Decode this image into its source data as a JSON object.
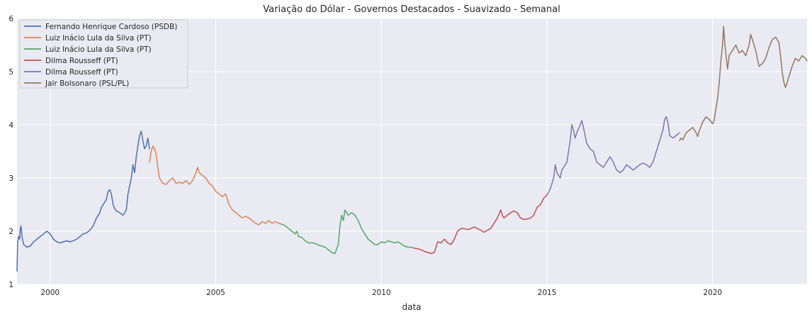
{
  "chart_data": {
    "type": "line",
    "title": "Variação do Dólar - Governos Destacados - Suavizado - Semanal",
    "xlabel": "data",
    "ylabel": "",
    "xlim": [
      1999.0,
      2022.85
    ],
    "ylim": [
      1,
      6
    ],
    "x_ticks": [
      2000,
      2005,
      2010,
      2015,
      2020
    ],
    "y_ticks": [
      1,
      2,
      3,
      4,
      5,
      6
    ],
    "grid": true,
    "legend_position": "top-left",
    "series": [
      {
        "name": "Fernando Henrique Cardoso (PSDB)",
        "color": "#4c72b0",
        "points": [
          [
            1999.0,
            1.25
          ],
          [
            1999.02,
            1.8
          ],
          [
            1999.05,
            1.9
          ],
          [
            1999.08,
            1.85
          ],
          [
            1999.1,
            2.05
          ],
          [
            1999.12,
            2.1
          ],
          [
            1999.15,
            1.9
          ],
          [
            1999.2,
            1.75
          ],
          [
            1999.3,
            1.7
          ],
          [
            1999.4,
            1.72
          ],
          [
            1999.5,
            1.8
          ],
          [
            1999.6,
            1.85
          ],
          [
            1999.7,
            1.9
          ],
          [
            1999.8,
            1.95
          ],
          [
            1999.9,
            2.0
          ],
          [
            2000.0,
            1.95
          ],
          [
            2000.1,
            1.85
          ],
          [
            2000.2,
            1.8
          ],
          [
            2000.3,
            1.78
          ],
          [
            2000.4,
            1.8
          ],
          [
            2000.5,
            1.82
          ],
          [
            2000.6,
            1.8
          ],
          [
            2000.7,
            1.82
          ],
          [
            2000.8,
            1.85
          ],
          [
            2000.9,
            1.9
          ],
          [
            2001.0,
            1.95
          ],
          [
            2001.1,
            1.97
          ],
          [
            2001.2,
            2.02
          ],
          [
            2001.3,
            2.1
          ],
          [
            2001.4,
            2.25
          ],
          [
            2001.5,
            2.35
          ],
          [
            2001.55,
            2.45
          ],
          [
            2001.6,
            2.5
          ],
          [
            2001.7,
            2.6
          ],
          [
            2001.75,
            2.75
          ],
          [
            2001.8,
            2.78
          ],
          [
            2001.85,
            2.7
          ],
          [
            2001.9,
            2.5
          ],
          [
            2001.95,
            2.42
          ],
          [
            2002.0,
            2.38
          ],
          [
            2002.1,
            2.35
          ],
          [
            2002.2,
            2.3
          ],
          [
            2002.3,
            2.4
          ],
          [
            2002.35,
            2.7
          ],
          [
            2002.4,
            2.85
          ],
          [
            2002.45,
            3.0
          ],
          [
            2002.5,
            3.25
          ],
          [
            2002.55,
            3.1
          ],
          [
            2002.6,
            3.4
          ],
          [
            2002.65,
            3.6
          ],
          [
            2002.7,
            3.8
          ],
          [
            2002.75,
            3.88
          ],
          [
            2002.8,
            3.7
          ],
          [
            2002.85,
            3.55
          ],
          [
            2002.9,
            3.6
          ],
          [
            2002.95,
            3.75
          ],
          [
            2003.0,
            3.55
          ]
        ]
      },
      {
        "name": "Luiz Inácio Lula da Silva (PT)",
        "color": "#dd8452",
        "points": [
          [
            2003.0,
            3.3
          ],
          [
            2003.05,
            3.5
          ],
          [
            2003.1,
            3.6
          ],
          [
            2003.15,
            3.55
          ],
          [
            2003.2,
            3.45
          ],
          [
            2003.25,
            3.2
          ],
          [
            2003.3,
            3.0
          ],
          [
            2003.35,
            2.95
          ],
          [
            2003.4,
            2.9
          ],
          [
            2003.5,
            2.88
          ],
          [
            2003.6,
            2.95
          ],
          [
            2003.7,
            3.0
          ],
          [
            2003.8,
            2.9
          ],
          [
            2003.9,
            2.92
          ],
          [
            2004.0,
            2.9
          ],
          [
            2004.1,
            2.95
          ],
          [
            2004.2,
            2.88
          ],
          [
            2004.3,
            2.95
          ],
          [
            2004.4,
            3.1
          ],
          [
            2004.45,
            3.2
          ],
          [
            2004.5,
            3.1
          ],
          [
            2004.6,
            3.05
          ],
          [
            2004.7,
            3.0
          ],
          [
            2004.8,
            2.9
          ],
          [
            2004.9,
            2.85
          ],
          [
            2005.0,
            2.75
          ],
          [
            2005.1,
            2.7
          ],
          [
            2005.2,
            2.65
          ],
          [
            2005.3,
            2.7
          ],
          [
            2005.4,
            2.5
          ],
          [
            2005.5,
            2.4
          ],
          [
            2005.6,
            2.35
          ],
          [
            2005.7,
            2.3
          ],
          [
            2005.8,
            2.25
          ],
          [
            2005.9,
            2.28
          ],
          [
            2006.0,
            2.25
          ],
          [
            2006.1,
            2.2
          ],
          [
            2006.2,
            2.15
          ],
          [
            2006.3,
            2.12
          ],
          [
            2006.4,
            2.18
          ],
          [
            2006.5,
            2.15
          ],
          [
            2006.6,
            2.2
          ],
          [
            2006.7,
            2.15
          ],
          [
            2006.8,
            2.18
          ],
          [
            2006.9,
            2.15
          ],
          [
            2007.0,
            2.13
          ]
        ]
      },
      {
        "name": "Luiz Inácio Lula da Silva (PT)",
        "color": "#55a868",
        "points": [
          [
            2007.0,
            2.13
          ],
          [
            2007.1,
            2.1
          ],
          [
            2007.2,
            2.05
          ],
          [
            2007.3,
            2.0
          ],
          [
            2007.4,
            1.95
          ],
          [
            2007.45,
            2.0
          ],
          [
            2007.5,
            1.9
          ],
          [
            2007.6,
            1.88
          ],
          [
            2007.7,
            1.82
          ],
          [
            2007.8,
            1.78
          ],
          [
            2007.9,
            1.78
          ],
          [
            2008.0,
            1.77
          ],
          [
            2008.1,
            1.74
          ],
          [
            2008.2,
            1.72
          ],
          [
            2008.3,
            1.7
          ],
          [
            2008.4,
            1.65
          ],
          [
            2008.5,
            1.6
          ],
          [
            2008.6,
            1.58
          ],
          [
            2008.7,
            1.75
          ],
          [
            2008.75,
            2.1
          ],
          [
            2008.8,
            2.3
          ],
          [
            2008.85,
            2.2
          ],
          [
            2008.9,
            2.4
          ],
          [
            2008.95,
            2.35
          ],
          [
            2009.0,
            2.3
          ],
          [
            2009.1,
            2.35
          ],
          [
            2009.2,
            2.3
          ],
          [
            2009.3,
            2.2
          ],
          [
            2009.4,
            2.05
          ],
          [
            2009.5,
            1.95
          ],
          [
            2009.6,
            1.85
          ],
          [
            2009.7,
            1.8
          ],
          [
            2009.8,
            1.75
          ],
          [
            2009.9,
            1.75
          ],
          [
            2010.0,
            1.8
          ],
          [
            2010.1,
            1.78
          ],
          [
            2010.2,
            1.82
          ],
          [
            2010.3,
            1.8
          ],
          [
            2010.4,
            1.78
          ],
          [
            2010.5,
            1.8
          ],
          [
            2010.6,
            1.76
          ],
          [
            2010.7,
            1.72
          ],
          [
            2010.8,
            1.7
          ],
          [
            2010.9,
            1.7
          ],
          [
            2011.0,
            1.68
          ]
        ]
      },
      {
        "name": "Dilma Rousseff (PT)",
        "color": "#c44e52",
        "points": [
          [
            2011.0,
            1.68
          ],
          [
            2011.1,
            1.67
          ],
          [
            2011.2,
            1.65
          ],
          [
            2011.3,
            1.62
          ],
          [
            2011.4,
            1.6
          ],
          [
            2011.5,
            1.58
          ],
          [
            2011.6,
            1.6
          ],
          [
            2011.7,
            1.8
          ],
          [
            2011.8,
            1.78
          ],
          [
            2011.9,
            1.85
          ],
          [
            2012.0,
            1.78
          ],
          [
            2012.1,
            1.75
          ],
          [
            2012.2,
            1.85
          ],
          [
            2012.3,
            2.0
          ],
          [
            2012.4,
            2.05
          ],
          [
            2012.5,
            2.05
          ],
          [
            2012.6,
            2.03
          ],
          [
            2012.7,
            2.05
          ],
          [
            2012.8,
            2.08
          ],
          [
            2012.9,
            2.05
          ],
          [
            2013.0,
            2.02
          ],
          [
            2013.1,
            1.98
          ],
          [
            2013.2,
            2.02
          ],
          [
            2013.3,
            2.05
          ],
          [
            2013.4,
            2.15
          ],
          [
            2013.5,
            2.25
          ],
          [
            2013.6,
            2.4
          ],
          [
            2013.65,
            2.3
          ],
          [
            2013.7,
            2.25
          ],
          [
            2013.8,
            2.3
          ],
          [
            2013.9,
            2.35
          ],
          [
            2014.0,
            2.38
          ],
          [
            2014.1,
            2.35
          ],
          [
            2014.2,
            2.25
          ],
          [
            2014.3,
            2.22
          ],
          [
            2014.4,
            2.23
          ],
          [
            2014.5,
            2.25
          ],
          [
            2014.6,
            2.3
          ],
          [
            2014.7,
            2.45
          ],
          [
            2014.8,
            2.5
          ],
          [
            2014.9,
            2.62
          ],
          [
            2015.0,
            2.68
          ]
        ]
      },
      {
        "name": "Dilma Rousseff (PT)",
        "color": "#8172b3",
        "points": [
          [
            2015.0,
            2.68
          ],
          [
            2015.1,
            2.8
          ],
          [
            2015.2,
            3.0
          ],
          [
            2015.25,
            3.25
          ],
          [
            2015.3,
            3.1
          ],
          [
            2015.4,
            3.0
          ],
          [
            2015.45,
            3.15
          ],
          [
            2015.5,
            3.2
          ],
          [
            2015.6,
            3.3
          ],
          [
            2015.65,
            3.5
          ],
          [
            2015.7,
            3.7
          ],
          [
            2015.75,
            4.0
          ],
          [
            2015.8,
            3.9
          ],
          [
            2015.85,
            3.75
          ],
          [
            2015.9,
            3.85
          ],
          [
            2016.0,
            4.0
          ],
          [
            2016.05,
            4.08
          ],
          [
            2016.1,
            3.95
          ],
          [
            2016.15,
            3.8
          ],
          [
            2016.2,
            3.65
          ],
          [
            2016.3,
            3.55
          ],
          [
            2016.4,
            3.5
          ],
          [
            2016.5,
            3.3
          ],
          [
            2016.6,
            3.25
          ],
          [
            2016.7,
            3.2
          ],
          [
            2016.8,
            3.3
          ],
          [
            2016.9,
            3.4
          ],
          [
            2017.0,
            3.3
          ],
          [
            2017.1,
            3.15
          ],
          [
            2017.2,
            3.1
          ],
          [
            2017.3,
            3.15
          ],
          [
            2017.4,
            3.25
          ],
          [
            2017.5,
            3.2
          ],
          [
            2017.6,
            3.15
          ],
          [
            2017.7,
            3.2
          ],
          [
            2017.8,
            3.25
          ],
          [
            2017.9,
            3.28
          ],
          [
            2018.0,
            3.25
          ],
          [
            2018.1,
            3.2
          ],
          [
            2018.2,
            3.3
          ],
          [
            2018.3,
            3.5
          ],
          [
            2018.4,
            3.7
          ],
          [
            2018.5,
            3.9
          ],
          [
            2018.55,
            4.1
          ],
          [
            2018.6,
            4.15
          ],
          [
            2018.65,
            4.05
          ],
          [
            2018.7,
            3.8
          ],
          [
            2018.8,
            3.75
          ],
          [
            2018.9,
            3.8
          ],
          [
            2019.0,
            3.85
          ]
        ]
      },
      {
        "name": "Jair Bolsonaro (PSL/PL)",
        "color": "#937860",
        "points": [
          [
            2019.0,
            3.7
          ],
          [
            2019.05,
            3.75
          ],
          [
            2019.1,
            3.72
          ],
          [
            2019.2,
            3.85
          ],
          [
            2019.3,
            3.9
          ],
          [
            2019.4,
            3.95
          ],
          [
            2019.5,
            3.85
          ],
          [
            2019.55,
            3.78
          ],
          [
            2019.6,
            3.9
          ],
          [
            2019.7,
            4.05
          ],
          [
            2019.8,
            4.15
          ],
          [
            2019.9,
            4.1
          ],
          [
            2020.0,
            4.02
          ],
          [
            2020.05,
            4.1
          ],
          [
            2020.1,
            4.3
          ],
          [
            2020.15,
            4.5
          ],
          [
            2020.2,
            4.8
          ],
          [
            2020.25,
            5.2
          ],
          [
            2020.3,
            5.5
          ],
          [
            2020.33,
            5.85
          ],
          [
            2020.37,
            5.5
          ],
          [
            2020.45,
            5.05
          ],
          [
            2020.5,
            5.3
          ],
          [
            2020.6,
            5.4
          ],
          [
            2020.7,
            5.5
          ],
          [
            2020.8,
            5.35
          ],
          [
            2020.9,
            5.4
          ],
          [
            2021.0,
            5.3
          ],
          [
            2021.1,
            5.5
          ],
          [
            2021.15,
            5.7
          ],
          [
            2021.2,
            5.6
          ],
          [
            2021.3,
            5.4
          ],
          [
            2021.4,
            5.1
          ],
          [
            2021.5,
            5.15
          ],
          [
            2021.6,
            5.25
          ],
          [
            2021.7,
            5.45
          ],
          [
            2021.8,
            5.6
          ],
          [
            2021.9,
            5.65
          ],
          [
            2022.0,
            5.55
          ],
          [
            2022.05,
            5.3
          ],
          [
            2022.1,
            5.0
          ],
          [
            2022.15,
            4.8
          ],
          [
            2022.2,
            4.7
          ],
          [
            2022.3,
            4.9
          ],
          [
            2022.4,
            5.1
          ],
          [
            2022.5,
            5.25
          ],
          [
            2022.6,
            5.2
          ],
          [
            2022.7,
            5.3
          ],
          [
            2022.8,
            5.25
          ],
          [
            2022.85,
            5.2
          ]
        ]
      }
    ]
  }
}
